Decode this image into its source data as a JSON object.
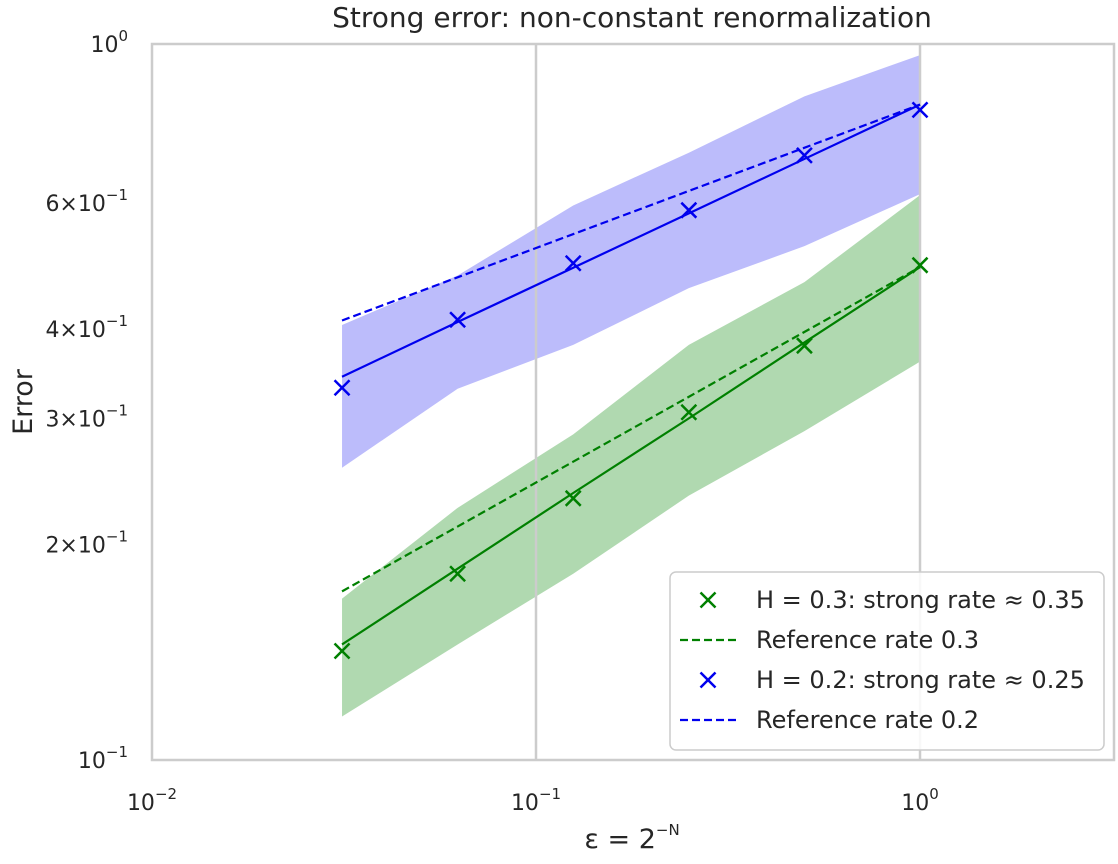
{
  "chart_data": {
    "type": "line",
    "title": "Strong error: non-constant renormalization",
    "xlabel": "ε = 2",
    "xlabel_exponent": "−N",
    "ylabel": "Error",
    "xscale": "log",
    "yscale": "log",
    "xlim": [
      0.01,
      3.2
    ],
    "ylim": [
      0.1,
      1.0
    ],
    "grid": "vertical major lines only",
    "legend_position": "lower-right",
    "x_major_ticks": [
      {
        "value": 0.01,
        "base": "10",
        "exp": "−2"
      },
      {
        "value": 0.1,
        "base": "10",
        "exp": "−1"
      },
      {
        "value": 1.0,
        "base": "10",
        "exp": "0"
      }
    ],
    "y_ticks": [
      {
        "value": 1.0,
        "base": "10",
        "exp": "0"
      },
      {
        "value": 0.6,
        "base": "6×10",
        "exp": "−1"
      },
      {
        "value": 0.4,
        "base": "4×10",
        "exp": "−1"
      },
      {
        "value": 0.3,
        "base": "3×10",
        "exp": "−1"
      },
      {
        "value": 0.2,
        "base": "2×10",
        "exp": "−1"
      },
      {
        "value": 0.1,
        "base": "10",
        "exp": "−1"
      }
    ],
    "x": [
      0.03125,
      0.0625,
      0.125,
      0.25,
      0.5,
      1.0
    ],
    "series": [
      {
        "name": "H = 0.3: strong rate ≈ 0.35",
        "color": "#008000",
        "band_color": "#7cc07c",
        "values": [
          0.142,
          0.182,
          0.232,
          0.306,
          0.379,
          0.491
        ],
        "fit": [
          0.145,
          0.185,
          0.236,
          0.3,
          0.383,
          0.488
        ],
        "band_upper": [
          0.168,
          0.225,
          0.285,
          0.38,
          0.465,
          0.615
        ],
        "band_lower": [
          0.115,
          0.145,
          0.182,
          0.234,
          0.288,
          0.36
        ]
      },
      {
        "name": "H = 0.2: strong rate ≈ 0.25",
        "color": "#0000ee",
        "band_color": "#8f8ff8",
        "values": [
          0.331,
          0.412,
          0.494,
          0.586,
          0.699,
          0.809
        ],
        "fit": [
          0.343,
          0.409,
          0.487,
          0.58,
          0.691,
          0.823
        ],
        "band_upper": [
          0.405,
          0.475,
          0.595,
          0.705,
          0.845,
          0.965
        ],
        "band_lower": [
          0.256,
          0.33,
          0.38,
          0.456,
          0.522,
          0.617
        ]
      }
    ],
    "reference_lines": [
      {
        "name": "Reference rate 0.3",
        "color": "#008000",
        "x": [
          0.03125,
          1.0
        ],
        "y": [
          0.172,
          0.488
        ]
      },
      {
        "name": "Reference rate 0.2",
        "color": "#0000ee",
        "x": [
          0.03125,
          1.0
        ],
        "y": [
          0.411,
          0.823
        ]
      }
    ],
    "legend": [
      {
        "label": "H = 0.3: strong rate ≈ 0.35",
        "kind": "marker",
        "color": "#008000"
      },
      {
        "label": "Reference rate 0.3",
        "kind": "dashed",
        "color": "#008000"
      },
      {
        "label": "H = 0.2: strong rate ≈ 0.25",
        "kind": "marker",
        "color": "#0000ee"
      },
      {
        "label": "Reference rate 0.2",
        "kind": "dashed",
        "color": "#0000ee"
      }
    ]
  }
}
